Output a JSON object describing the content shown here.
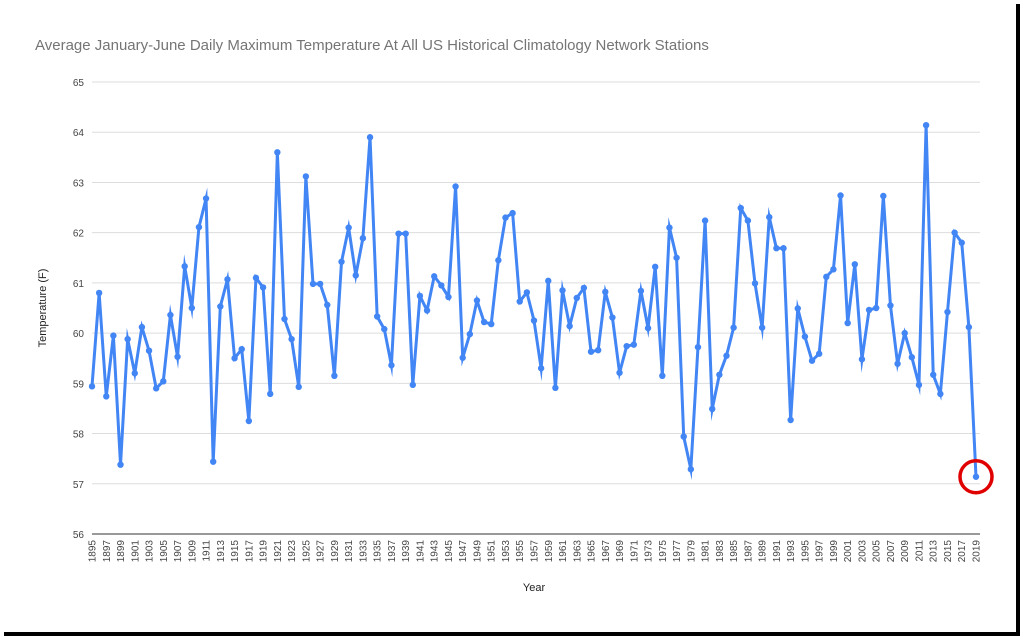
{
  "chart_data": {
    "type": "line",
    "title": "Average January-June Daily Maximum Temperature At All US Historical Climatology Network Stations",
    "xlabel": "Year",
    "ylabel": "Temperature (F)",
    "ylim": [
      56,
      65
    ],
    "yticks": [
      56,
      57,
      58,
      59,
      60,
      61,
      62,
      63,
      64,
      65
    ],
    "xlim": [
      1895,
      2019
    ],
    "xtick_step": 2,
    "grid": true,
    "legend": "none",
    "line_color": "#4285f4",
    "highlight_color": "#e00000",
    "highlight_year": 2019,
    "x": [
      1895,
      1896,
      1897,
      1898,
      1899,
      1900,
      1901,
      1902,
      1903,
      1904,
      1905,
      1906,
      1907,
      1908,
      1909,
      1910,
      1911,
      1912,
      1913,
      1914,
      1915,
      1916,
      1917,
      1918,
      1919,
      1920,
      1921,
      1922,
      1923,
      1924,
      1925,
      1926,
      1927,
      1928,
      1929,
      1930,
      1931,
      1932,
      1933,
      1934,
      1935,
      1936,
      1937,
      1938,
      1939,
      1940,
      1941,
      1942,
      1943,
      1944,
      1945,
      1946,
      1947,
      1948,
      1949,
      1950,
      1951,
      1952,
      1953,
      1954,
      1955,
      1956,
      1957,
      1958,
      1959,
      1960,
      1961,
      1962,
      1963,
      1964,
      1965,
      1966,
      1967,
      1968,
      1969,
      1970,
      1971,
      1972,
      1973,
      1974,
      1975,
      1976,
      1977,
      1978,
      1979,
      1980,
      1981,
      1982,
      1983,
      1984,
      1985,
      1986,
      1987,
      1988,
      1989,
      1990,
      1991,
      1992,
      1993,
      1994,
      1995,
      1996,
      1997,
      1998,
      1999,
      2000,
      2001,
      2002,
      2003,
      2004,
      2005,
      2006,
      2007,
      2008,
      2009,
      2010,
      2011,
      2012,
      2013,
      2014,
      2015,
      2016,
      2017,
      2018,
      2019
    ],
    "series": [
      {
        "values": [
          58.94,
          60.8,
          58.74,
          59.95,
          57.38,
          59.88,
          59.2,
          60.12,
          59.65,
          58.9,
          59.04,
          60.36,
          59.53,
          61.33,
          60.5,
          62.11,
          62.68,
          57.44,
          60.53,
          61.07,
          59.5,
          59.68,
          58.25,
          61.1,
          60.91,
          58.79,
          63.6,
          60.28,
          59.88,
          58.93,
          63.12,
          60.98,
          60.98,
          60.56,
          59.15,
          61.42,
          62.1,
          61.15,
          61.89,
          63.9,
          60.33,
          60.08,
          59.36,
          61.98,
          61.98,
          58.97,
          60.74,
          60.45,
          61.13,
          60.95,
          60.72,
          62.92,
          59.51,
          59.98,
          60.65,
          60.22,
          60.18,
          61.45,
          62.3,
          62.39,
          60.63,
          60.81,
          60.25,
          59.3,
          61.04,
          58.91,
          60.85,
          60.14,
          60.7,
          60.9,
          59.63,
          59.66,
          60.82,
          60.31,
          59.21,
          59.74,
          59.77,
          60.84,
          60.1,
          61.32,
          59.15,
          62.1,
          61.5,
          57.94,
          57.29,
          59.72,
          62.24,
          58.49,
          59.17,
          59.55,
          60.11,
          62.49,
          62.24,
          60.99,
          60.11,
          62.31,
          61.69,
          61.69,
          58.27,
          60.49,
          59.93,
          59.45,
          59.59,
          61.12,
          61.27,
          62.74,
          60.2,
          61.37,
          59.48,
          60.46,
          60.5,
          62.73,
          60.55,
          59.39,
          60.0,
          59.52,
          58.97,
          64.14,
          59.17,
          58.79,
          60.42,
          62.0,
          61.8,
          60.12,
          57.14
        ]
      }
    ]
  }
}
